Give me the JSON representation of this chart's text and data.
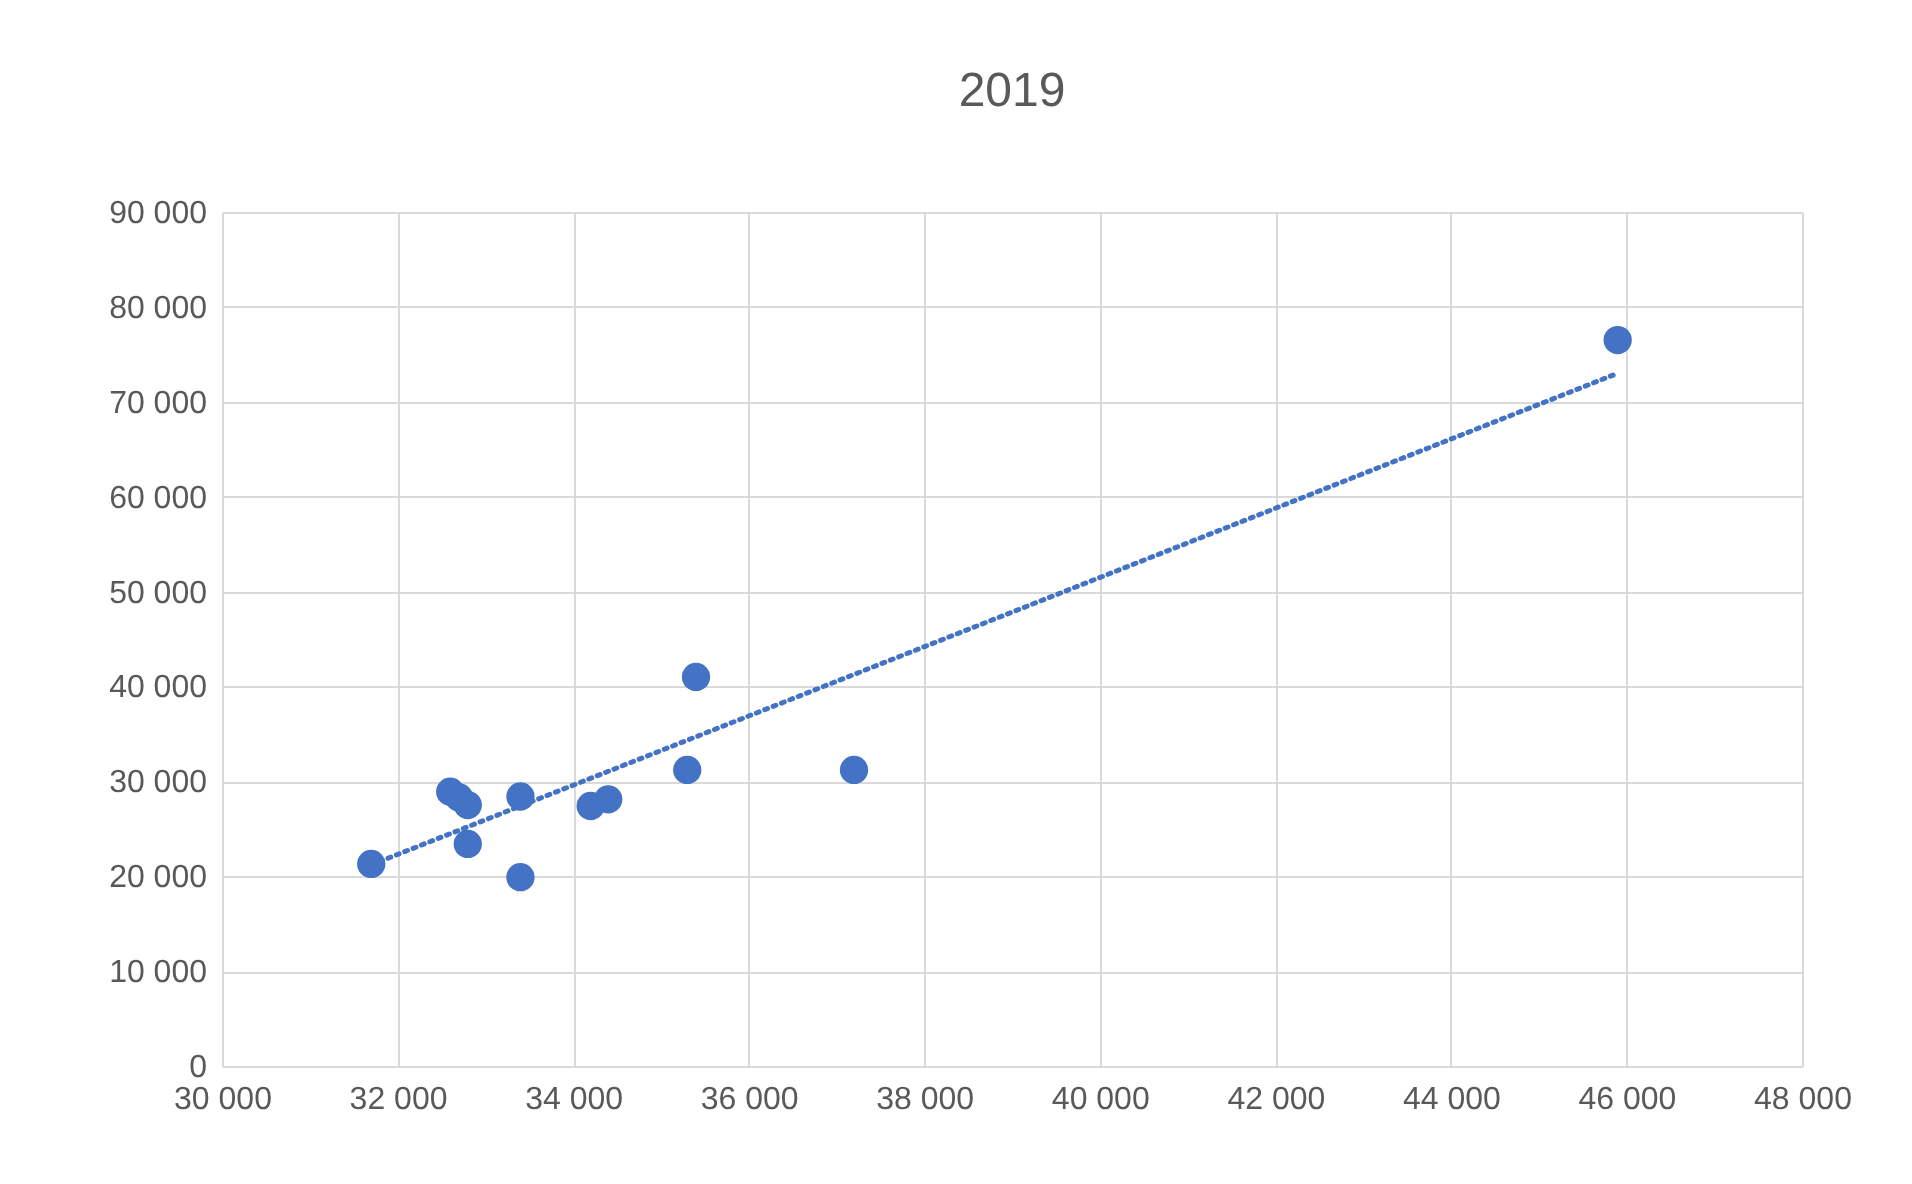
{
  "chart_data": {
    "type": "scatter",
    "title": "2019",
    "grid": true,
    "xlim": [
      30000,
      48000
    ],
    "ylim": [
      0,
      90000
    ],
    "xticks": [
      {
        "value": 30000,
        "label": "30 000"
      },
      {
        "value": 32000,
        "label": "32 000"
      },
      {
        "value": 34000,
        "label": "34 000"
      },
      {
        "value": 36000,
        "label": "36 000"
      },
      {
        "value": 38000,
        "label": "38 000"
      },
      {
        "value": 40000,
        "label": "40 000"
      },
      {
        "value": 42000,
        "label": "42 000"
      },
      {
        "value": 44000,
        "label": "44 000"
      },
      {
        "value": 46000,
        "label": "46 000"
      },
      {
        "value": 48000,
        "label": "48 000"
      }
    ],
    "yticks": [
      0,
      {
        "value": 10000,
        "label": "10 000"
      },
      {
        "value": 20000,
        "label": "20 000"
      },
      {
        "value": 30000,
        "label": "30 000"
      },
      {
        "value": 40000,
        "label": "40 000"
      },
      {
        "value": 50000,
        "label": "50 000"
      },
      {
        "value": 60000,
        "label": "60 000"
      },
      {
        "value": 70000,
        "label": "70 000"
      },
      {
        "value": 80000,
        "label": "80 000"
      },
      {
        "value": 90000,
        "label": "90 000"
      }
    ],
    "series": [
      {
        "color": "#4472c4",
        "marker": "circle",
        "x": [
          31700,
          32600,
          32700,
          32800,
          32800,
          33400,
          33400,
          34200,
          34400,
          35300,
          35400,
          37200,
          45900
        ],
        "values": [
          21300,
          28900,
          28300,
          27500,
          23400,
          19900,
          28400,
          27400,
          28100,
          31200,
          41000,
          31200,
          76500
        ]
      },
      {
        "type": "line",
        "color": "#4472c4",
        "line_style": "dotted",
        "x": [
          31700,
          45900
        ],
        "values": [
          21200,
          73000
        ]
      }
    ]
  }
}
